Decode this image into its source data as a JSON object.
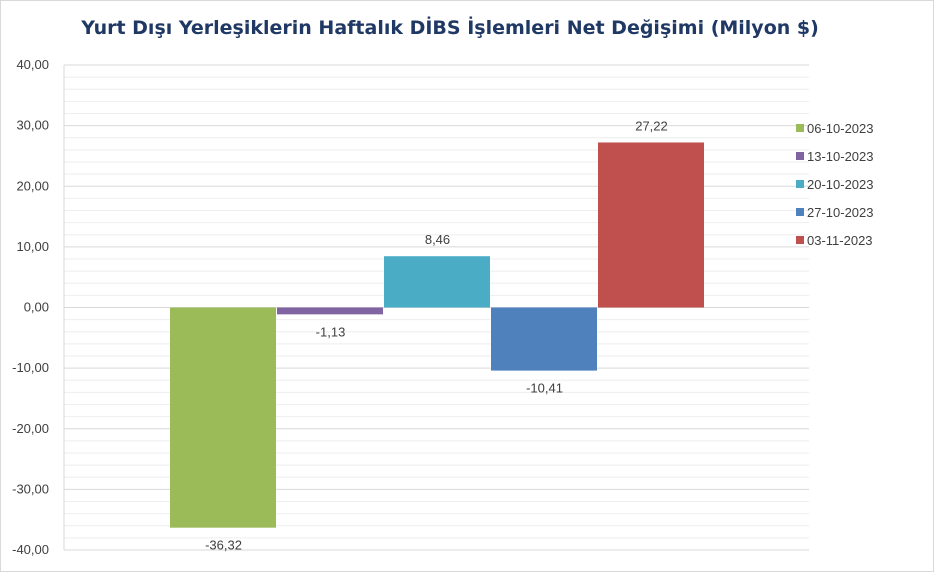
{
  "chart_data": {
    "type": "bar",
    "title": "Yurt Dışı Yerleşiklerin Haftalık DİBS İşlemleri Net Değişimi (Milyon $)",
    "xlabel": "",
    "ylabel": "",
    "ylim": [
      -40,
      40
    ],
    "y_ticks": [
      "40,00",
      "30,00",
      "20,00",
      "10,00",
      "0,00",
      "-10,00",
      "-20,00",
      "-30,00",
      "-40,00"
    ],
    "y_tick_values": [
      40,
      30,
      20,
      10,
      0,
      -10,
      -20,
      -30,
      -40
    ],
    "grid": true,
    "legend_position": "right",
    "series": [
      {
        "name": "06-10-2023",
        "value": -36.32,
        "label": "-36,32",
        "color": "#9bbb59"
      },
      {
        "name": "13-10-2023",
        "value": -1.13,
        "label": "-1,13",
        "color": "#8064a2"
      },
      {
        "name": "20-10-2023",
        "value": 8.46,
        "label": "8,46",
        "color": "#4bacc6"
      },
      {
        "name": "27-10-2023",
        "value": -10.41,
        "label": "-10,41",
        "color": "#4f81bd"
      },
      {
        "name": "03-11-2023",
        "value": 27.22,
        "label": "27,22",
        "color": "#c0504d"
      }
    ]
  }
}
